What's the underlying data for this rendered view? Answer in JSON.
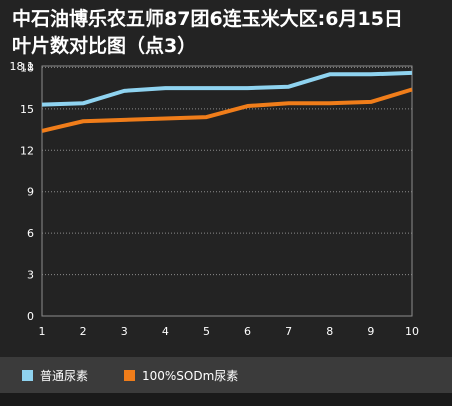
{
  "title_line1": "中石油博乐农五师87团6连玉米大区:6月15日",
  "title_line2": "叶片数对比图（点3）",
  "chart_data": {
    "type": "line",
    "x": [
      1,
      2,
      3,
      4,
      5,
      6,
      7,
      8,
      9,
      10
    ],
    "ylim": [
      0,
      18.1
    ],
    "yticks": [
      "18.1",
      "18",
      "15",
      "12",
      "9",
      "6",
      "3",
      "0"
    ],
    "ytick_values": [
      18.1,
      18,
      15,
      12,
      9,
      6,
      3,
      0
    ],
    "grid": true,
    "legend_position": "bottom",
    "series": [
      {
        "name": "普通尿素",
        "color": "#8fd3f0",
        "values": [
          15.3,
          15.4,
          16.3,
          16.5,
          16.5,
          16.5,
          16.6,
          17.5,
          17.5,
          17.6
        ]
      },
      {
        "name": "100%SODm尿素",
        "color": "#f07d1a",
        "values": [
          13.4,
          14.1,
          14.2,
          14.3,
          14.4,
          15.2,
          15.4,
          15.4,
          15.5,
          16.4
        ]
      }
    ]
  },
  "colors": {
    "background": "#232323",
    "grid": "#8c8c8c",
    "axis_text": "#ffffff",
    "legend_bg": "#3b3b3b"
  }
}
